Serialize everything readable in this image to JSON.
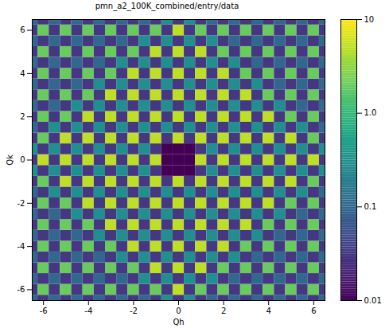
{
  "chart_data": {
    "type": "heatmap",
    "title": "pmn_a2_100K_combined/entry/data",
    "x_label": "Qh",
    "y_label": "Qk",
    "xlim": [
      -6.5,
      6.5
    ],
    "ylim": [
      -6.5,
      6.5
    ],
    "xticks": [
      -6,
      -4,
      -2,
      0,
      2,
      4,
      6
    ],
    "yticks": [
      -6,
      -4,
      -2,
      0,
      2,
      4,
      6
    ],
    "color": "viridis",
    "log": true,
    "colorbar": {
      "range": [
        0.01,
        10
      ],
      "ticks": [
        {
          "value": 0.01,
          "label": "0.01"
        },
        {
          "value": 0.1,
          "label": "0.1"
        },
        {
          "value": 1,
          "label": "1.0"
        },
        10
      ]
    },
    "x": [
      -6.5,
      -6,
      -5.5,
      -5,
      -4.5,
      -4,
      -3.5,
      -3,
      -2.5,
      -2,
      -1.5,
      -1,
      -0.5,
      0,
      0.5,
      1,
      1.5,
      2,
      2.5,
      3,
      3.5,
      4,
      4.5,
      5,
      5.5,
      6,
      6.5
    ],
    "y": [
      -6.5,
      -6,
      -5.5,
      -5,
      -4.5,
      -4,
      -3.5,
      -3,
      -2.5,
      -2,
      -1.5,
      -1,
      -0.5,
      0,
      0.5,
      1,
      1.5,
      2,
      2.5,
      3,
      3.5,
      4,
      4.5,
      5,
      5.5,
      6,
      6.5
    ],
    "values": [
      [
        0.1,
        0.03,
        0.1,
        0.03,
        0.1,
        0.03,
        0.1,
        0.03,
        0.1,
        0.03,
        0.1,
        0.03,
        0.3,
        0.03,
        0.3,
        0.03,
        0.1,
        0.03,
        0.1,
        0.03,
        0.1,
        0.03,
        0.1,
        0.03,
        0.1,
        0.03,
        0.1
      ],
      [
        0.03,
        2,
        0.03,
        2,
        0.03,
        2,
        0.03,
        2,
        0.03,
        2,
        0.03,
        2,
        0.03,
        5,
        0.03,
        2,
        0.03,
        2,
        0.03,
        2,
        0.03,
        2,
        0.03,
        2,
        0.03,
        2,
        0.03
      ],
      [
        0.1,
        0.03,
        0.1,
        0.03,
        0.1,
        0.03,
        0.1,
        0.03,
        0.1,
        0.03,
        0.3,
        0.03,
        0.3,
        0.03,
        0.3,
        0.03,
        0.3,
        0.03,
        0.1,
        0.03,
        0.1,
        0.03,
        0.1,
        0.03,
        0.1,
        0.03,
        0.1
      ],
      [
        0.03,
        2,
        0.03,
        2,
        0.03,
        2,
        0.03,
        2,
        0.03,
        2,
        0.03,
        5,
        0.03,
        5,
        0.03,
        5,
        0.03,
        2,
        0.03,
        2,
        0.03,
        2,
        0.03,
        2,
        0.03,
        2,
        0.03
      ],
      [
        0.1,
        0.03,
        0.1,
        0.03,
        0.1,
        0.03,
        0.1,
        0.03,
        0.3,
        0.03,
        0.3,
        0.03,
        0.3,
        0.03,
        0.3,
        0.03,
        0.3,
        0.03,
        0.3,
        0.03,
        0.1,
        0.03,
        0.1,
        0.03,
        0.1,
        0.03,
        0.1
      ],
      [
        0.03,
        2,
        0.03,
        2,
        0.03,
        2,
        0.03,
        2,
        0.03,
        5,
        0.03,
        5,
        0.03,
        5,
        0.03,
        5,
        0.03,
        5,
        0.03,
        2,
        0.03,
        2,
        0.03,
        2,
        0.03,
        2,
        0.03
      ],
      [
        0.1,
        0.03,
        0.1,
        0.03,
        0.1,
        0.03,
        0.3,
        0.03,
        0.3,
        0.03,
        0.3,
        0.03,
        0.3,
        0.03,
        0.3,
        0.03,
        0.3,
        0.03,
        0.3,
        0.03,
        0.3,
        0.03,
        0.1,
        0.03,
        0.1,
        0.03,
        0.1
      ],
      [
        0.03,
        2,
        0.03,
        2,
        0.03,
        2,
        0.03,
        5,
        0.03,
        5,
        0.03,
        5,
        0.03,
        5,
        0.03,
        5,
        0.03,
        5,
        0.03,
        5,
        0.03,
        2,
        0.03,
        2,
        0.03,
        2,
        0.03
      ],
      [
        0.1,
        0.03,
        0.1,
        0.03,
        0.3,
        0.03,
        0.3,
        0.03,
        0.3,
        0.03,
        0.3,
        0.03,
        0.3,
        0.03,
        0.3,
        0.03,
        0.3,
        0.03,
        0.3,
        0.03,
        0.3,
        0.03,
        0.3,
        0.03,
        0.1,
        0.03,
        0.1
      ],
      [
        0.03,
        2,
        0.03,
        2,
        0.03,
        5,
        0.03,
        5,
        0.03,
        5,
        0.03,
        5,
        0.03,
        5,
        0.03,
        5,
        0.03,
        5,
        0.03,
        5,
        0.03,
        5,
        0.03,
        2,
        0.03,
        2,
        0.03
      ],
      [
        0.1,
        0.03,
        0.3,
        0.03,
        0.3,
        0.03,
        0.3,
        0.03,
        0.3,
        0.03,
        0.3,
        0.03,
        0.3,
        0.03,
        0.3,
        0.03,
        0.3,
        0.03,
        0.3,
        0.03,
        0.3,
        0.03,
        0.3,
        0.03,
        0.3,
        0.03,
        0.1
      ],
      [
        0.03,
        2,
        0.03,
        5,
        0.03,
        5,
        0.03,
        5,
        0.03,
        5,
        0.03,
        5,
        0.03,
        5,
        0.03,
        5,
        0.03,
        5,
        0.03,
        5,
        0.03,
        5,
        0.03,
        5,
        0.03,
        2,
        0.03
      ],
      [
        0.3,
        0.03,
        0.3,
        0.03,
        0.3,
        0.03,
        0.3,
        0.03,
        0.3,
        0.03,
        0.3,
        0.03,
        0.01,
        0.01,
        0.01,
        0.03,
        0.3,
        0.03,
        0.3,
        0.03,
        0.3,
        0.03,
        0.3,
        0.03,
        0.3,
        0.03,
        0.3
      ],
      [
        0.03,
        5,
        0.03,
        5,
        0.03,
        5,
        0.03,
        5,
        0.03,
        5,
        0.03,
        5,
        0.01,
        0.01,
        0.01,
        5,
        0.03,
        5,
        0.03,
        5,
        0.03,
        5,
        0.03,
        5,
        0.03,
        5,
        0.03
      ],
      [
        0.3,
        0.03,
        0.3,
        0.03,
        0.3,
        0.03,
        0.3,
        0.03,
        0.3,
        0.03,
        0.3,
        0.03,
        0.01,
        0.01,
        0.01,
        0.03,
        0.3,
        0.03,
        0.3,
        0.03,
        0.3,
        0.03,
        0.3,
        0.03,
        0.3,
        0.03,
        0.3
      ],
      [
        0.03,
        2,
        0.03,
        5,
        0.03,
        5,
        0.03,
        5,
        0.03,
        5,
        0.03,
        5,
        0.03,
        5,
        0.03,
        5,
        0.03,
        5,
        0.03,
        5,
        0.03,
        5,
        0.03,
        5,
        0.03,
        2,
        0.03
      ],
      [
        0.1,
        0.03,
        0.3,
        0.03,
        0.3,
        0.03,
        0.3,
        0.03,
        0.3,
        0.03,
        0.3,
        0.03,
        0.3,
        0.03,
        0.3,
        0.03,
        0.3,
        0.03,
        0.3,
        0.03,
        0.3,
        0.03,
        0.3,
        0.03,
        0.3,
        0.03,
        0.1
      ],
      [
        0.03,
        2,
        0.03,
        2,
        0.03,
        5,
        0.03,
        5,
        0.03,
        5,
        0.03,
        5,
        0.03,
        5,
        0.03,
        5,
        0.03,
        5,
        0.03,
        5,
        0.03,
        5,
        0.03,
        2,
        0.03,
        2,
        0.03
      ],
      [
        0.1,
        0.03,
        0.1,
        0.03,
        0.3,
        0.03,
        0.3,
        0.03,
        0.3,
        0.03,
        0.3,
        0.03,
        0.3,
        0.03,
        0.3,
        0.03,
        0.3,
        0.03,
        0.3,
        0.03,
        0.3,
        0.03,
        0.3,
        0.03,
        0.1,
        0.03,
        0.1
      ],
      [
        0.03,
        2,
        0.03,
        2,
        0.03,
        2,
        0.03,
        5,
        0.03,
        5,
        0.03,
        5,
        0.03,
        5,
        0.03,
        5,
        0.03,
        5,
        0.03,
        5,
        0.03,
        2,
        0.03,
        2,
        0.03,
        2,
        0.03
      ],
      [
        0.1,
        0.03,
        0.1,
        0.03,
        0.1,
        0.03,
        0.3,
        0.03,
        0.3,
        0.03,
        0.3,
        0.03,
        0.3,
        0.03,
        0.3,
        0.03,
        0.3,
        0.03,
        0.3,
        0.03,
        0.3,
        0.03,
        0.1,
        0.03,
        0.1,
        0.03,
        0.1
      ],
      [
        0.03,
        2,
        0.03,
        2,
        0.03,
        2,
        0.03,
        2,
        0.03,
        5,
        0.03,
        5,
        0.03,
        5,
        0.03,
        5,
        0.03,
        5,
        0.03,
        2,
        0.03,
        2,
        0.03,
        2,
        0.03,
        2,
        0.03
      ],
      [
        0.1,
        0.03,
        0.1,
        0.03,
        0.1,
        0.03,
        0.1,
        0.03,
        0.3,
        0.03,
        0.3,
        0.03,
        0.3,
        0.03,
        0.3,
        0.03,
        0.3,
        0.03,
        0.3,
        0.03,
        0.1,
        0.03,
        0.1,
        0.03,
        0.1,
        0.03,
        0.1
      ],
      [
        0.03,
        2,
        0.03,
        2,
        0.03,
        2,
        0.03,
        2,
        0.03,
        2,
        0.03,
        5,
        0.03,
        5,
        0.03,
        5,
        0.03,
        2,
        0.03,
        2,
        0.03,
        2,
        0.03,
        2,
        0.03,
        2,
        0.03
      ],
      [
        0.1,
        0.03,
        0.1,
        0.03,
        0.1,
        0.03,
        0.1,
        0.03,
        0.1,
        0.03,
        0.3,
        0.03,
        0.3,
        0.03,
        0.3,
        0.03,
        0.3,
        0.03,
        0.1,
        0.03,
        0.1,
        0.03,
        0.1,
        0.03,
        0.1,
        0.03,
        0.1
      ],
      [
        0.03,
        2,
        0.03,
        2,
        0.03,
        2,
        0.03,
        2,
        0.03,
        2,
        0.03,
        2,
        0.03,
        5,
        0.03,
        2,
        0.03,
        2,
        0.03,
        2,
        0.03,
        2,
        0.03,
        2,
        0.03,
        2,
        0.03
      ],
      [
        0.1,
        0.03,
        0.1,
        0.03,
        0.1,
        0.03,
        0.1,
        0.03,
        0.1,
        0.03,
        0.1,
        0.03,
        0.3,
        0.03,
        0.3,
        0.03,
        0.1,
        0.03,
        0.1,
        0.03,
        0.1,
        0.03,
        0.1,
        0.03,
        0.1,
        0.03,
        0.1
      ]
    ]
  }
}
